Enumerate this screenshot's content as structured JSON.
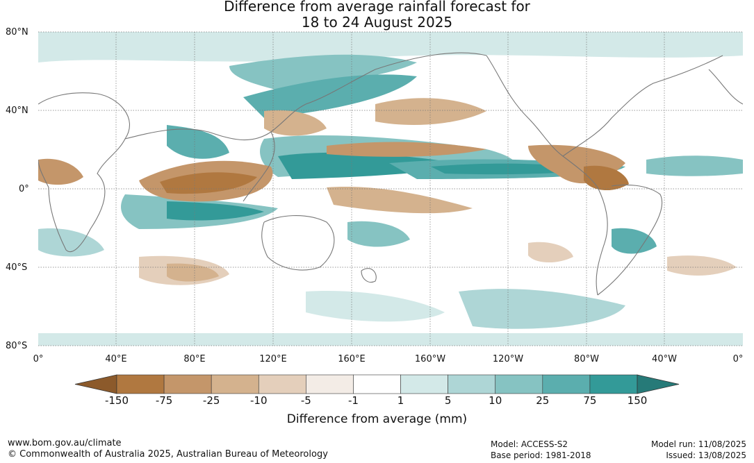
{
  "title_line1": "Difference from average rainfall forecast for",
  "title_line2": "18 to 24 August 2025",
  "lat_labels": [
    "80°N",
    "40°N",
    "0°",
    "40°S",
    "80°S"
  ],
  "lon_labels": [
    "0°",
    "40°E",
    "80°E",
    "120°E",
    "160°E",
    "160°W",
    "120°W",
    "80°W",
    "40°W",
    "0°"
  ],
  "legend": {
    "title": "Difference from average (mm)",
    "bounds": [
      "-150",
      "-75",
      "-25",
      "-10",
      "-5",
      "-1",
      "1",
      "5",
      "10",
      "25",
      "75",
      "150"
    ],
    "colors": [
      "#8c5a2b",
      "#b07840",
      "#c4966a",
      "#d4b28e",
      "#e4cfbb",
      "#f3ece6",
      "#ffffff",
      "#d3e9e8",
      "#aed6d6",
      "#86c3c2",
      "#5baeae",
      "#339a98",
      "#267a78"
    ]
  },
  "footer": {
    "website": "www.bom.gov.au/climate",
    "copyright": "© Commonwealth of Australia 2025, Australian Bureau of Meteorology",
    "model": "Model: ACCESS-S2",
    "base_period": "Base period: 1981-2018",
    "model_run": "Model run: 11/08/2025",
    "issued": "Issued: 13/08/2025"
  }
}
